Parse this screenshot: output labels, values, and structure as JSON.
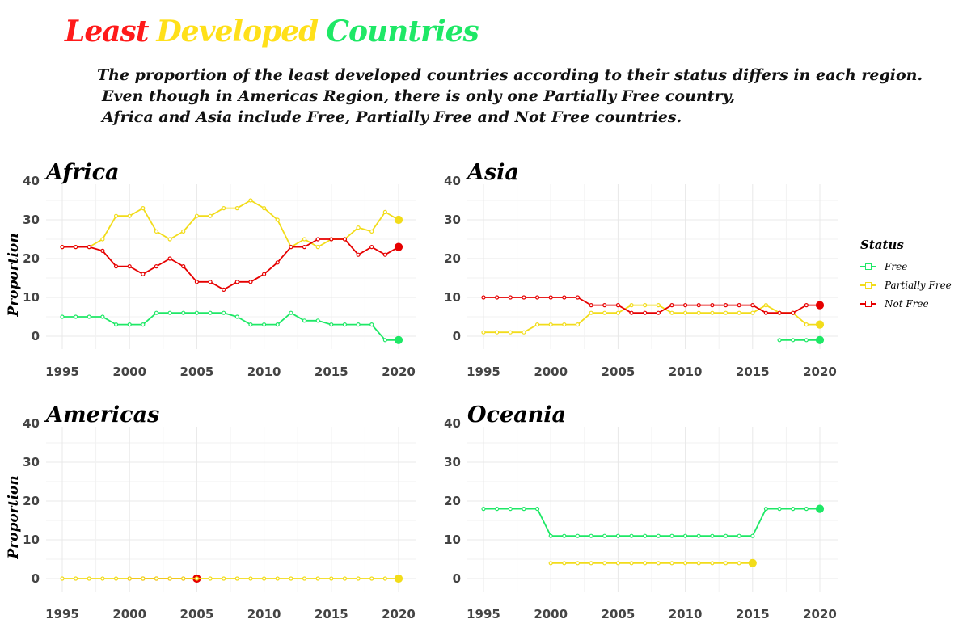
{
  "title": {
    "words": [
      {
        "text": "Least",
        "color": "#ff1a1a"
      },
      {
        "text": "Developed",
        "color": "#ffe01a"
      },
      {
        "text": "Countries",
        "color": "#1ee866"
      }
    ]
  },
  "subtitle": {
    "line1": "The proportion of the least developed countries according to their status differs in each region.",
    "line2": "Even though in Americas Region, there is only one Partially Free country,",
    "line3": "Africa and Asia include Free, Partially Free and Not Free countries."
  },
  "legend": {
    "title": "Status",
    "items": [
      {
        "label": "Free",
        "color": "#1ee866"
      },
      {
        "label": "Partially Free",
        "color": "#f2dc1a"
      },
      {
        "label": "Not Free",
        "color": "#e60000"
      }
    ]
  },
  "chart_data": {
    "type": "line",
    "ylabel": "Proportion",
    "xlim": [
      1995,
      2020
    ],
    "ylim": [
      0,
      40
    ],
    "x_ticks": [
      1995,
      2000,
      2005,
      2010,
      2015,
      2020
    ],
    "y_ticks": [
      0,
      10,
      20,
      30,
      40
    ],
    "panels": [
      {
        "name": "Africa",
        "series": [
          {
            "name": "Free",
            "color": "#1ee866",
            "x": [
              1995,
              1996,
              1997,
              1998,
              1999,
              2000,
              2001,
              2002,
              2003,
              2004,
              2005,
              2006,
              2007,
              2008,
              2009,
              2010,
              2011,
              2012,
              2013,
              2014,
              2015,
              2016,
              2017,
              2018,
              2019,
              2020
            ],
            "y": [
              5,
              5,
              5,
              5,
              3,
              3,
              3,
              6,
              6,
              6,
              6,
              6,
              6,
              5,
              3,
              3,
              3,
              6,
              4,
              4,
              3,
              3,
              3,
              3,
              -1,
              -1
            ]
          },
          {
            "name": "Partially Free",
            "color": "#f2dc1a",
            "x": [
              1995,
              1996,
              1997,
              1998,
              1999,
              2000,
              2001,
              2002,
              2003,
              2004,
              2005,
              2006,
              2007,
              2008,
              2009,
              2010,
              2011,
              2012,
              2013,
              2014,
              2015,
              2016,
              2017,
              2018,
              2019,
              2020
            ],
            "y": [
              23,
              23,
              23,
              25,
              31,
              31,
              33,
              27,
              25,
              27,
              31,
              31,
              33,
              33,
              35,
              33,
              30,
              23,
              25,
              23,
              25,
              25,
              28,
              27,
              32,
              30
            ]
          },
          {
            "name": "Not Free",
            "color": "#e60000",
            "x": [
              1995,
              1996,
              1997,
              1998,
              1999,
              2000,
              2001,
              2002,
              2003,
              2004,
              2005,
              2006,
              2007,
              2008,
              2009,
              2010,
              2011,
              2012,
              2013,
              2014,
              2015,
              2016,
              2017,
              2018,
              2019,
              2020
            ],
            "y": [
              23,
              23,
              23,
              22,
              18,
              18,
              16,
              18,
              20,
              18,
              14,
              14,
              12,
              14,
              14,
              16,
              19,
              23,
              23,
              25,
              25,
              25,
              21,
              23,
              21,
              23
            ]
          }
        ]
      },
      {
        "name": "Asia",
        "series": [
          {
            "name": "Free",
            "color": "#1ee866",
            "x": [
              2017,
              2018,
              2019,
              2020
            ],
            "y": [
              -1,
              -1,
              -1,
              -1
            ]
          },
          {
            "name": "Partially Free",
            "color": "#f2dc1a",
            "x": [
              1995,
              1996,
              1997,
              1998,
              1999,
              2000,
              2001,
              2002,
              2003,
              2004,
              2005,
              2006,
              2007,
              2008,
              2009,
              2010,
              2011,
              2012,
              2013,
              2014,
              2015,
              2016,
              2017,
              2018,
              2019,
              2020
            ],
            "y": [
              1,
              1,
              1,
              1,
              3,
              3,
              3,
              3,
              6,
              6,
              6,
              8,
              8,
              8,
              6,
              6,
              6,
              6,
              6,
              6,
              6,
              8,
              6,
              6,
              3,
              3
            ]
          },
          {
            "name": "Not Free",
            "color": "#e60000",
            "x": [
              1995,
              1996,
              1997,
              1998,
              1999,
              2000,
              2001,
              2002,
              2003,
              2004,
              2005,
              2006,
              2007,
              2008,
              2009,
              2010,
              2011,
              2012,
              2013,
              2014,
              2015,
              2016,
              2017,
              2018,
              2019,
              2020
            ],
            "y": [
              10,
              10,
              10,
              10,
              10,
              10,
              10,
              10,
              8,
              8,
              8,
              6,
              6,
              6,
              8,
              8,
              8,
              8,
              8,
              8,
              8,
              6,
              6,
              6,
              8,
              8
            ]
          }
        ]
      },
      {
        "name": "Americas",
        "series": [
          {
            "name": "Not Free",
            "color": "#e60000",
            "x": [
              2000,
              2001,
              2002,
              2003,
              2004,
              2005
            ],
            "y": [
              0,
              0,
              0,
              0,
              0,
              0
            ]
          },
          {
            "name": "Partially Free",
            "color": "#f2dc1a",
            "x": [
              1995,
              1996,
              1997,
              1998,
              1999,
              2000,
              2001,
              2002,
              2003,
              2004,
              2005,
              2006,
              2007,
              2008,
              2009,
              2010,
              2011,
              2012,
              2013,
              2014,
              2015,
              2016,
              2017,
              2018,
              2019,
              2020
            ],
            "y": [
              0,
              0,
              0,
              0,
              0,
              0,
              0,
              0,
              0,
              0,
              0,
              0,
              0,
              0,
              0,
              0,
              0,
              0,
              0,
              0,
              0,
              0,
              0,
              0,
              0,
              0
            ]
          }
        ]
      },
      {
        "name": "Oceania",
        "series": [
          {
            "name": "Free",
            "color": "#1ee866",
            "x": [
              1995,
              1996,
              1997,
              1998,
              1999,
              2000,
              2001,
              2002,
              2003,
              2004,
              2005,
              2006,
              2007,
              2008,
              2009,
              2010,
              2011,
              2012,
              2013,
              2014,
              2015,
              2016,
              2017,
              2018,
              2019,
              2020
            ],
            "y": [
              18,
              18,
              18,
              18,
              18,
              11,
              11,
              11,
              11,
              11,
              11,
              11,
              11,
              11,
              11,
              11,
              11,
              11,
              11,
              11,
              11,
              18,
              18,
              18,
              18,
              18
            ]
          },
          {
            "name": "Partially Free",
            "color": "#f2dc1a",
            "x": [
              2000,
              2001,
              2002,
              2003,
              2004,
              2005,
              2006,
              2007,
              2008,
              2009,
              2010,
              2011,
              2012,
              2013,
              2014,
              2015
            ],
            "y": [
              4,
              4,
              4,
              4,
              4,
              4,
              4,
              4,
              4,
              4,
              4,
              4,
              4,
              4,
              4,
              4
            ]
          }
        ]
      }
    ]
  }
}
